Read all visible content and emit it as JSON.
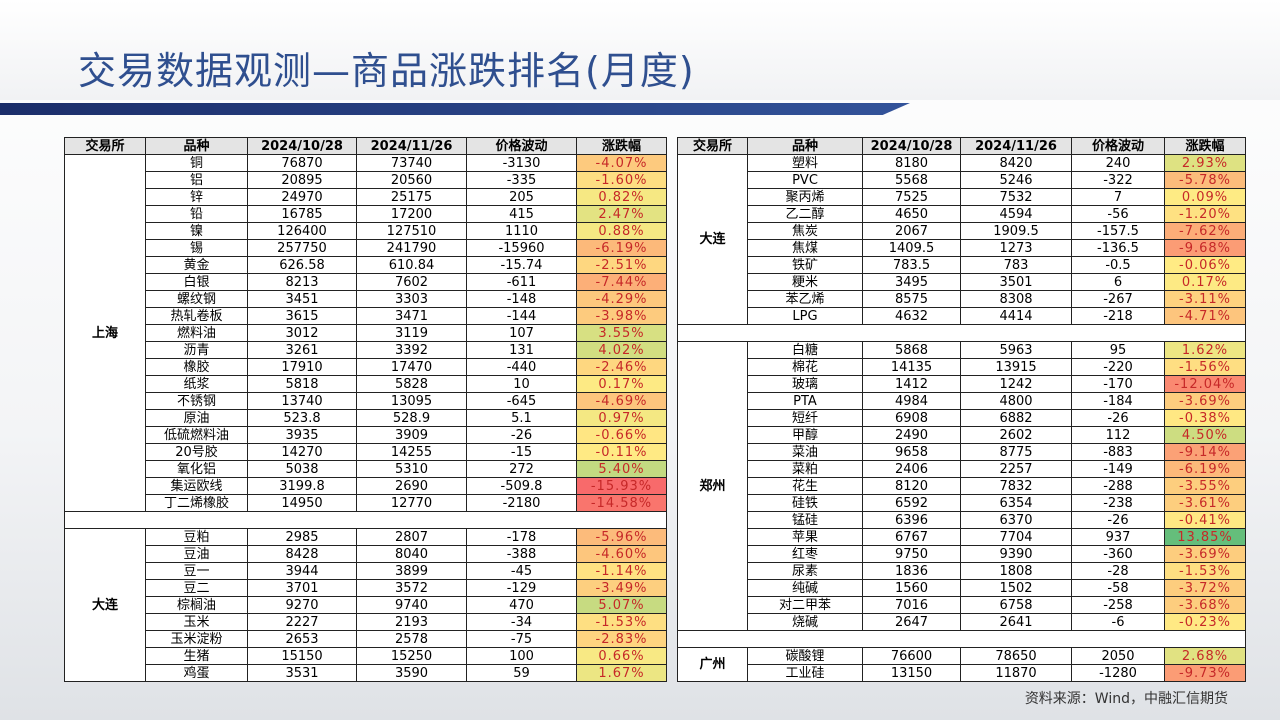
{
  "title": "交易数据观测—商品涨跌排名(月度)",
  "source": "资料来源：Wind，中融汇信期货",
  "header": [
    "交易所",
    "品种",
    "2024/10/28",
    "2024/11/26",
    "价格波动",
    "涨跌幅"
  ],
  "left": {
    "groups": [
      {
        "exchange": "上海",
        "rows": [
          [
            "铜",
            "76870",
            "73740",
            "-3130",
            "-4.07%"
          ],
          [
            "铝",
            "20895",
            "20560",
            "-335",
            "-1.60%"
          ],
          [
            "锌",
            "24970",
            "25175",
            "205",
            "0.82%"
          ],
          [
            "铅",
            "16785",
            "17200",
            "415",
            "2.47%"
          ],
          [
            "镍",
            "126400",
            "127510",
            "1110",
            "0.88%"
          ],
          [
            "锡",
            "257750",
            "241790",
            "-15960",
            "-6.19%"
          ],
          [
            "黄金",
            "626.58",
            "610.84",
            "-15.74",
            "-2.51%"
          ],
          [
            "白银",
            "8213",
            "7602",
            "-611",
            "-7.44%"
          ],
          [
            "螺纹钢",
            "3451",
            "3303",
            "-148",
            "-4.29%"
          ],
          [
            "热轧卷板",
            "3615",
            "3471",
            "-144",
            "-3.98%"
          ],
          [
            "燃料油",
            "3012",
            "3119",
            "107",
            "3.55%"
          ],
          [
            "沥青",
            "3261",
            "3392",
            "131",
            "4.02%"
          ],
          [
            "橡胶",
            "17910",
            "17470",
            "-440",
            "-2.46%"
          ],
          [
            "纸浆",
            "5818",
            "5828",
            "10",
            "0.17%"
          ],
          [
            "不锈钢",
            "13740",
            "13095",
            "-645",
            "-4.69%"
          ],
          [
            "原油",
            "523.8",
            "528.9",
            "5.1",
            "0.97%"
          ],
          [
            "低硫燃料油",
            "3935",
            "3909",
            "-26",
            "-0.66%"
          ],
          [
            "20号胶",
            "14270",
            "14255",
            "-15",
            "-0.11%"
          ],
          [
            "氧化铝",
            "5038",
            "5310",
            "272",
            "5.40%"
          ],
          [
            "集运欧线",
            "3199.8",
            "2690",
            "-509.8",
            "-15.93%"
          ],
          [
            "丁二烯橡胶",
            "14950",
            "12770",
            "-2180",
            "-14.58%"
          ]
        ]
      },
      {
        "exchange": "大连",
        "rows": [
          [
            "豆粕",
            "2985",
            "2807",
            "-178",
            "-5.96%"
          ],
          [
            "豆油",
            "8428",
            "8040",
            "-388",
            "-4.60%"
          ],
          [
            "豆一",
            "3944",
            "3899",
            "-45",
            "-1.14%"
          ],
          [
            "豆二",
            "3701",
            "3572",
            "-129",
            "-3.49%"
          ],
          [
            "棕榈油",
            "9270",
            "9740",
            "470",
            "5.07%"
          ],
          [
            "玉米",
            "2227",
            "2193",
            "-34",
            "-1.53%"
          ],
          [
            "玉米淀粉",
            "2653",
            "2578",
            "-75",
            "-2.83%"
          ],
          [
            "生猪",
            "15150",
            "15250",
            "100",
            "0.66%"
          ],
          [
            "鸡蛋",
            "3531",
            "3590",
            "59",
            "1.67%"
          ]
        ]
      }
    ]
  },
  "right": {
    "groups": [
      {
        "exchange": "大连",
        "rows": [
          [
            "塑料",
            "8180",
            "8420",
            "240",
            "2.93%"
          ],
          [
            "PVC",
            "5568",
            "5246",
            "-322",
            "-5.78%"
          ],
          [
            "聚丙烯",
            "7525",
            "7532",
            "7",
            "0.09%"
          ],
          [
            "乙二醇",
            "4650",
            "4594",
            "-56",
            "-1.20%"
          ],
          [
            "焦炭",
            "2067",
            "1909.5",
            "-157.5",
            "-7.62%"
          ],
          [
            "焦煤",
            "1409.5",
            "1273",
            "-136.5",
            "-9.68%"
          ],
          [
            "铁矿",
            "783.5",
            "783",
            "-0.5",
            "-0.06%"
          ],
          [
            "粳米",
            "3495",
            "3501",
            "6",
            "0.17%"
          ],
          [
            "苯乙烯",
            "8575",
            "8308",
            "-267",
            "-3.11%"
          ],
          [
            "LPG",
            "4632",
            "4414",
            "-218",
            "-4.71%"
          ]
        ]
      },
      {
        "exchange": "郑州",
        "rows": [
          [
            "白糖",
            "5868",
            "5963",
            "95",
            "1.62%"
          ],
          [
            "棉花",
            "14135",
            "13915",
            "-220",
            "-1.56%"
          ],
          [
            "玻璃",
            "1412",
            "1242",
            "-170",
            "-12.04%"
          ],
          [
            "PTA",
            "4984",
            "4800",
            "-184",
            "-3.69%"
          ],
          [
            "短纤",
            "6908",
            "6882",
            "-26",
            "-0.38%"
          ],
          [
            "甲醇",
            "2490",
            "2602",
            "112",
            "4.50%"
          ],
          [
            "菜油",
            "9658",
            "8775",
            "-883",
            "-9.14%"
          ],
          [
            "菜粕",
            "2406",
            "2257",
            "-149",
            "-6.19%"
          ],
          [
            "花生",
            "8120",
            "7832",
            "-288",
            "-3.55%"
          ],
          [
            "硅铁",
            "6592",
            "6354",
            "-238",
            "-3.61%"
          ],
          [
            "锰硅",
            "6396",
            "6370",
            "-26",
            "-0.41%"
          ],
          [
            "苹果",
            "6767",
            "7704",
            "937",
            "13.85%"
          ],
          [
            "红枣",
            "9750",
            "9390",
            "-360",
            "-3.69%"
          ],
          [
            "尿素",
            "1836",
            "1808",
            "-28",
            "-1.53%"
          ],
          [
            "纯碱",
            "1560",
            "1502",
            "-58",
            "-3.72%"
          ],
          [
            "对二甲苯",
            "7016",
            "6758",
            "-258",
            "-3.68%"
          ],
          [
            "烧碱",
            "2647",
            "2641",
            "-6",
            "-0.23%"
          ]
        ]
      },
      {
        "exchange": "广州",
        "rows": [
          [
            "碳酸锂",
            "76600",
            "78650",
            "2050",
            "2.68%"
          ],
          [
            "工业硅",
            "13150",
            "11870",
            "-1280",
            "-9.73%"
          ]
        ]
      }
    ]
  }
}
